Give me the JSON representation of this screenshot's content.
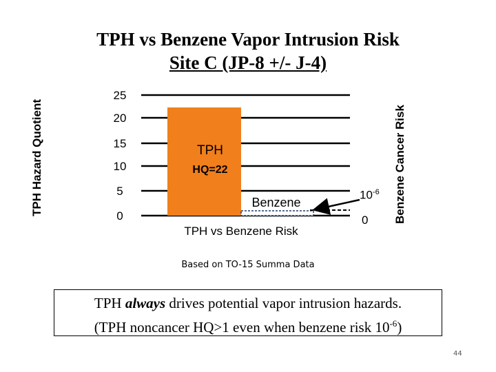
{
  "title": {
    "line1": "TPH vs Benzene Vapor Intrusion Risk",
    "line2": "Site C (JP-8 +/- J-4)"
  },
  "chart_data": {
    "type": "bar",
    "title": "TPH vs Benzene Vapor Intrusion Risk Site C (JP-8 +/- J-4)",
    "xlabel": "TPH vs Benzene Risk",
    "ylabel": "TPH Hazard Quotient",
    "ylabel_right": "Benzene Cancer Risk",
    "ylim": [
      0,
      25
    ],
    "y_ticks": [
      "0",
      "5",
      "10",
      "15",
      "20",
      "25"
    ],
    "y_tick_values": [
      0,
      5,
      10,
      15,
      20,
      25
    ],
    "grid": true,
    "right_axis_labels": [
      {
        "text": "10",
        "superscript": "-6"
      },
      {
        "text": "0",
        "superscript": ""
      }
    ],
    "series": [
      {
        "name": "TPH",
        "value": 22,
        "label_line1": "TPH",
        "label_line2": "HQ=22",
        "color": "#f07f1c"
      },
      {
        "name": "Benzene",
        "value": 0.2,
        "label_line1": "Benzene",
        "color": "#1f3a6a"
      }
    ]
  },
  "source_note": "Based on TO-15 Summa Data",
  "conclusion": {
    "line1_pre": "TPH ",
    "line1_em": "always",
    "line1_post": " drives potential vapor intrusion hazards.",
    "line2_pre": "(TPH noncancer HQ>1 even when benzene risk 10",
    "line2_sup": "-6",
    "line2_post": ")"
  },
  "page_number": "44"
}
